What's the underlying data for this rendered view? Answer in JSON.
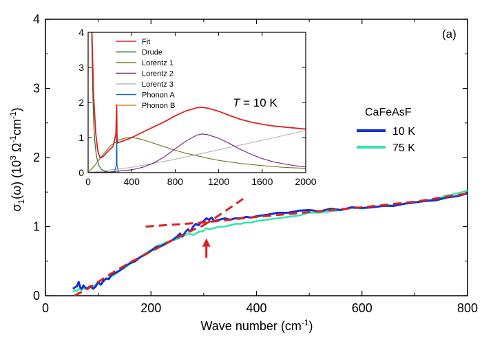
{
  "chart_data": [
    {
      "type": "line",
      "panel_label": "(a)",
      "xlabel": "Wave number (cm",
      "xlabel_sup": "-1",
      "xlabel_end": ")",
      "ylabel": "σ",
      "ylabel_sub": "1",
      "ylabel_mid": "(ω) (10",
      "ylabel_sup3": "3",
      "ylabel_unit": " Ω",
      "ylabel_sup_m1a": "-1",
      "ylabel_cm": "cm",
      "ylabel_sup_m1b": "-1",
      "ylabel_end": ")",
      "xlim": [
        0,
        800
      ],
      "ylim": [
        0,
        4
      ],
      "xticks": [
        0,
        200,
        400,
        600,
        800
      ],
      "yticks": [
        0,
        1,
        2,
        3,
        4
      ],
      "legend_title": "CaFeAsF",
      "legend_placement": "right",
      "series": [
        {
          "name": "10 K",
          "color": "#1530d0",
          "x": [
            52,
            56,
            60,
            63,
            66,
            69,
            72,
            75,
            78,
            82,
            86,
            90,
            95,
            100,
            105,
            110,
            115,
            120,
            125,
            130,
            140,
            150,
            160,
            170,
            180,
            190,
            200,
            210,
            220,
            230,
            240,
            250,
            255,
            260,
            265,
            270,
            275,
            280,
            285,
            290,
            295,
            300,
            305,
            310,
            315,
            320,
            330,
            340,
            350,
            360,
            370,
            380,
            390,
            400,
            420,
            440,
            460,
            480,
            500,
            520,
            540,
            560,
            580,
            600,
            620,
            640,
            660,
            680,
            700,
            720,
            740,
            760,
            780,
            800
          ],
          "y": [
            0.1,
            0.12,
            0.14,
            0.2,
            0.12,
            0.1,
            0.15,
            0.12,
            0.1,
            0.12,
            0.14,
            0.1,
            0.13,
            0.2,
            0.16,
            0.22,
            0.25,
            0.24,
            0.3,
            0.32,
            0.36,
            0.42,
            0.47,
            0.5,
            0.56,
            0.6,
            0.65,
            0.7,
            0.72,
            0.76,
            0.8,
            0.86,
            0.9,
            0.86,
            0.92,
            0.96,
            0.93,
            1.0,
            1.04,
            1.02,
            1.06,
            1.08,
            1.12,
            1.1,
            1.13,
            1.08,
            1.1,
            1.12,
            1.1,
            1.12,
            1.12,
            1.14,
            1.13,
            1.15,
            1.17,
            1.2,
            1.2,
            1.23,
            1.24,
            1.22,
            1.26,
            1.24,
            1.28,
            1.27,
            1.28,
            1.3,
            1.3,
            1.33,
            1.35,
            1.37,
            1.38,
            1.42,
            1.44,
            1.48
          ],
          "width": 3
        },
        {
          "name": "75 K",
          "color": "#2ee8a8",
          "x": [
            52,
            56,
            60,
            64,
            68,
            72,
            76,
            80,
            85,
            90,
            95,
            100,
            105,
            110,
            115,
            120,
            125,
            130,
            140,
            150,
            160,
            170,
            180,
            190,
            200,
            210,
            220,
            230,
            240,
            250,
            260,
            270,
            280,
            290,
            300,
            305,
            310,
            320,
            330,
            340,
            350,
            360,
            370,
            380,
            390,
            400,
            420,
            440,
            460,
            480,
            500,
            520,
            540,
            560,
            580,
            600,
            620,
            640,
            660,
            680,
            700,
            720,
            740,
            760,
            780,
            800
          ],
          "y": [
            0.06,
            0.08,
            0.07,
            0.1,
            0.08,
            0.12,
            0.1,
            0.12,
            0.14,
            0.13,
            0.16,
            0.18,
            0.16,
            0.2,
            0.24,
            0.26,
            0.28,
            0.3,
            0.36,
            0.4,
            0.46,
            0.5,
            0.56,
            0.62,
            0.66,
            0.72,
            0.74,
            0.78,
            0.8,
            0.82,
            0.86,
            0.9,
            0.88,
            0.92,
            0.94,
            0.98,
            0.96,
            0.98,
            1.0,
            1.0,
            1.02,
            1.04,
            1.04,
            1.06,
            1.06,
            1.08,
            1.1,
            1.12,
            1.14,
            1.16,
            1.2,
            1.2,
            1.22,
            1.24,
            1.27,
            1.26,
            1.28,
            1.3,
            1.31,
            1.33,
            1.35,
            1.38,
            1.4,
            1.45,
            1.48,
            1.52
          ],
          "width": 2.5
        }
      ],
      "fit_lines": [
        {
          "color": "#e02020",
          "style": "dashed",
          "x": [
            55,
            80,
            120,
            160,
            200,
            240,
            270,
            300
          ],
          "y": [
            0.0,
            0.1,
            0.3,
            0.48,
            0.64,
            0.8,
            0.92,
            1.02
          ]
        },
        {
          "color": "#e02020",
          "style": "dashed",
          "x": [
            300,
            340,
            380
          ],
          "y": [
            1.02,
            1.22,
            1.43
          ]
        },
        {
          "color": "#e02020",
          "style": "dashed",
          "x": [
            190,
            300,
            400,
            500,
            600,
            700,
            800
          ],
          "y": [
            1.0,
            1.06,
            1.14,
            1.21,
            1.28,
            1.36,
            1.48
          ]
        }
      ],
      "arrow": {
        "x": 305,
        "y_from": 0.55,
        "y_to": 0.83,
        "color": "#e02020"
      }
    },
    {
      "type": "line",
      "inset": true,
      "annotation_T": "T",
      "annotation_rest": " = 10 K",
      "xlim": [
        0,
        2000
      ],
      "ylim": [
        0,
        4
      ],
      "xticks": [
        0,
        400,
        800,
        1200,
        1600,
        2000
      ],
      "yticks": [
        0,
        1,
        2,
        3,
        4
      ],
      "series": [
        {
          "name": "Fit",
          "color": "#e02020",
          "x": [
            35,
            50,
            70,
            90,
            110,
            140,
            180,
            230,
            255,
            262,
            266,
            272,
            280,
            320,
            400,
            500,
            600,
            700,
            800,
            900,
            1000,
            1050,
            1100,
            1200,
            1300,
            1400,
            1500,
            1600,
            1700,
            1800,
            1900,
            2000
          ],
          "y": [
            4.0,
            2.2,
            1.1,
            0.6,
            0.42,
            0.46,
            0.6,
            0.75,
            1.1,
            1.95,
            1.0,
            0.85,
            0.86,
            0.9,
            1.0,
            1.15,
            1.3,
            1.45,
            1.62,
            1.76,
            1.85,
            1.86,
            1.84,
            1.75,
            1.63,
            1.52,
            1.44,
            1.38,
            1.33,
            1.3,
            1.27,
            1.24
          ]
        },
        {
          "name": "Drude",
          "color": "#1e7a2e",
          "x": [
            32,
            40,
            50,
            60,
            70,
            80,
            100,
            120,
            150,
            200,
            260
          ],
          "y": [
            4.0,
            2.6,
            1.5,
            0.95,
            0.62,
            0.42,
            0.2,
            0.1,
            0.04,
            0.01,
            0.0
          ]
        },
        {
          "name": "Lorentz 1",
          "color": "#7a7820",
          "x": [
            0,
            60,
            120,
            200,
            280,
            350,
            400,
            450,
            520,
            600,
            700,
            800,
            900,
            1000,
            1100,
            1200,
            1400,
            1600,
            1800,
            2000
          ],
          "y": [
            0.0,
            0.2,
            0.45,
            0.75,
            0.93,
            0.99,
            1.0,
            0.98,
            0.92,
            0.84,
            0.74,
            0.64,
            0.55,
            0.48,
            0.41,
            0.35,
            0.26,
            0.2,
            0.15,
            0.12
          ]
        },
        {
          "name": "Lorentz 2",
          "color": "#7a2a80",
          "x": [
            0,
            200,
            400,
            500,
            600,
            700,
            800,
            900,
            1000,
            1050,
            1100,
            1200,
            1300,
            1400,
            1500,
            1600,
            1700,
            1800,
            1900,
            2000
          ],
          "y": [
            0.0,
            0.02,
            0.08,
            0.15,
            0.27,
            0.45,
            0.68,
            0.9,
            1.07,
            1.1,
            1.08,
            0.98,
            0.83,
            0.66,
            0.52,
            0.4,
            0.31,
            0.25,
            0.2,
            0.16
          ]
        },
        {
          "name": "Lorentz 3",
          "color": "#b8b8b8",
          "x": [
            0,
            400,
            800,
            1200,
            1600,
            2000
          ],
          "y": [
            0.0,
            0.15,
            0.38,
            0.65,
            0.92,
            1.2
          ]
        },
        {
          "name": "Phonon A",
          "color": "#1a70a8",
          "x": [
            240,
            258,
            262,
            266,
            280
          ],
          "y": [
            0.0,
            0.2,
            1.9,
            0.2,
            0.0
          ]
        },
        {
          "name": "Phonon B",
          "color": "#e08a20",
          "x": [
            0,
            2000
          ],
          "y": [
            0.0,
            0.0
          ]
        }
      ]
    }
  ]
}
